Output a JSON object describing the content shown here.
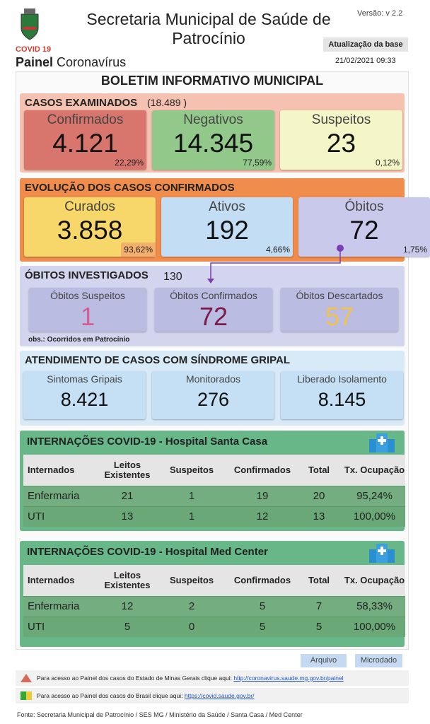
{
  "header": {
    "title": "Secretaria Municipal de Saúde de Patrocínio",
    "tag": "COVID 19",
    "panel_bold": "Painel",
    "panel_rest": "Coronavírus",
    "version": "Versão: v 2.2",
    "update_label": "Atualização da base",
    "update_date": "21/02/2021 09:33"
  },
  "bulletin_title": "BOLETIM INFORMATIVO MUNICIPAL",
  "examined": {
    "title": "CASOS EXAMINADOS",
    "total": "(18.489 )",
    "cards": [
      {
        "label": "Confirmados",
        "value": "4.121",
        "pct": "22,29%"
      },
      {
        "label": "Negativos",
        "value": "14.345",
        "pct": "77,59%"
      },
      {
        "label": "Suspeitos",
        "value": "23",
        "pct": "0,12%"
      }
    ]
  },
  "evolution": {
    "title": "EVOLUÇÃO DOS CASOS CONFIRMADOS",
    "cards": [
      {
        "label": "Curados",
        "value": "3.858",
        "pct": "93,62%"
      },
      {
        "label": "Ativos",
        "value": "192",
        "pct": "4,66%"
      },
      {
        "label": "Óbitos",
        "value": "72",
        "pct": "1,75%"
      }
    ]
  },
  "deaths": {
    "title": "ÓBITOS INVESTIGADOS",
    "total": "130",
    "cards": [
      {
        "label": "Óbitos Suspeitos",
        "value": "1"
      },
      {
        "label": "Óbitos Confirmados",
        "value": "72"
      },
      {
        "label": "Óbitos Descartados",
        "value": "57"
      }
    ],
    "note": "obs.: Ocorridos em Patrocínio"
  },
  "flu": {
    "title": "ATENDIMENTO DE CASOS COM SÍNDROME GRIPAL",
    "cards": [
      {
        "label": "Sintomas Gripais",
        "value": "8.421"
      },
      {
        "label": "Monitorados",
        "value": "276"
      },
      {
        "label": "Liberado Isolamento",
        "value": "8.145"
      }
    ]
  },
  "hospitals": [
    {
      "title": "INTERNAÇÕES COVID-19 - Hospital Santa Casa",
      "columns": [
        "Internados",
        "Leitos Existentes",
        "Suspeitos",
        "Confirmados",
        "Total",
        "Tx. Ocupação"
      ],
      "rows": [
        [
          "Enfermaria",
          "21",
          "1",
          "19",
          "20",
          "95,24%"
        ],
        [
          "UTI",
          "13",
          "1",
          "12",
          "13",
          "100,00%"
        ]
      ]
    },
    {
      "title": "INTERNAÇÕES COVID-19 - Hospital Med Center",
      "columns": [
        "Internados",
        "Leitos Existentes",
        "Suspeitos",
        "Confirmados",
        "Total",
        "Tx. Ocupação"
      ],
      "rows": [
        [
          "Enfermaria",
          "12",
          "2",
          "5",
          "7",
          "58,33%"
        ],
        [
          "UTI",
          "5",
          "0",
          "5",
          "5",
          "100,00%"
        ]
      ]
    }
  ],
  "buttons": [
    "Arquivo",
    "Microdado"
  ],
  "links": [
    {
      "text": "Para acesso ao Painel dos casos do Estado de Minas Gerais clique aqui:",
      "url": "http://coronavirus.saude.mg.gov.br/painel"
    },
    {
      "text": "Para acesso ao Painel dos casos do Brasil clique aqui:",
      "url": "https://covid.saude.gov.br/"
    }
  ],
  "footer": "Fonte: Secretaria Municipal de Patrocínio / SES MG / Ministério da Saúde / Santa Casa / Med Center"
}
